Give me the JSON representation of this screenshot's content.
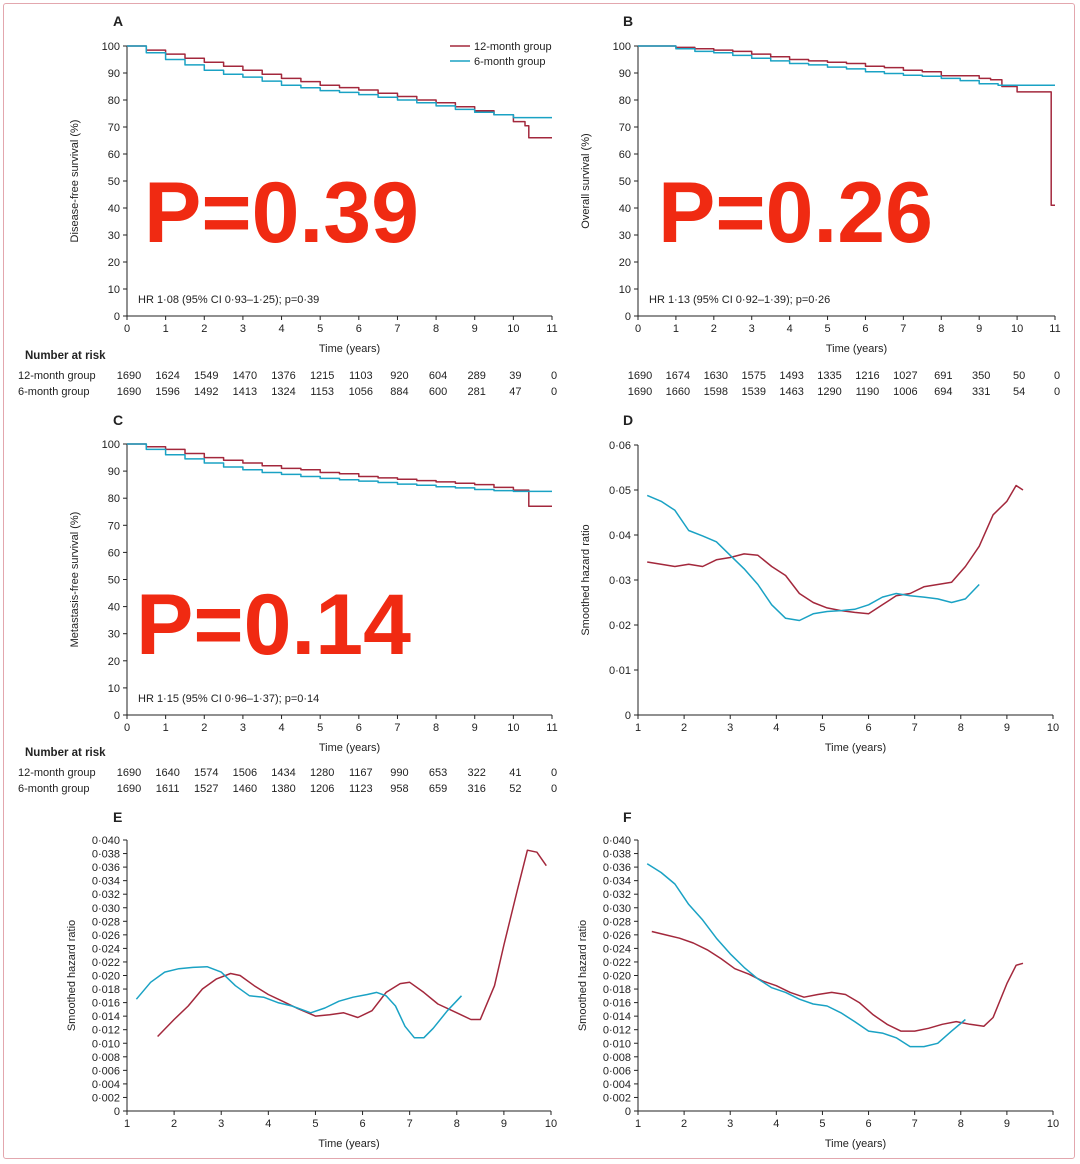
{
  "colors": {
    "twelve_month": "#a3283c",
    "six_month": "#1aa2c4",
    "pvalue": "#f02a12"
  },
  "legend": {
    "twelve": "12-month group",
    "six": "6-month group"
  },
  "risk_table": {
    "heading": "Number at risk",
    "row_labels": [
      "12-month group",
      "6-month group"
    ]
  },
  "chart_data": [
    {
      "type": "line",
      "panel": "A",
      "ylabel": "Disease-free survival (%)",
      "xlabel": "Time (years)",
      "xlim": [
        0,
        11
      ],
      "ylim": [
        0,
        100
      ],
      "xticks": [
        0,
        1,
        2,
        3,
        4,
        5,
        6,
        7,
        8,
        9,
        10,
        11
      ],
      "yticks": [
        0,
        10,
        20,
        30,
        40,
        50,
        60,
        70,
        80,
        90,
        100
      ],
      "stat_text": "HR 1·08 (95% CI 0·93–1·25); p=0·39",
      "pvalue_overlay": "P=0.39",
      "series": [
        {
          "name": "12-month group",
          "x": [
            0,
            0.5,
            1,
            1.5,
            2,
            2.5,
            3,
            3.5,
            4,
            4.5,
            5,
            5.5,
            6,
            6.5,
            7,
            7.5,
            8,
            8.5,
            9,
            9.5,
            10,
            10.3,
            10.4,
            11
          ],
          "y": [
            100,
            98.5,
            97,
            95.5,
            94,
            92.5,
            91,
            89.5,
            88,
            86.8,
            85.5,
            84.6,
            83.7,
            82.5,
            81.3,
            80,
            79,
            77.5,
            76,
            74.5,
            72,
            70.5,
            66,
            66
          ]
        },
        {
          "name": "6-month group",
          "x": [
            0,
            0.5,
            1,
            1.5,
            2,
            2.5,
            3,
            3.5,
            4,
            4.5,
            5,
            5.5,
            6,
            6.5,
            7,
            7.5,
            8,
            8.5,
            9,
            9.5,
            10,
            11
          ],
          "y": [
            100,
            97.5,
            95,
            93,
            91,
            89.5,
            88.5,
            87,
            85.5,
            84.5,
            83.5,
            82.8,
            82,
            81,
            80,
            79,
            77.8,
            76.5,
            75.5,
            74.5,
            73.5,
            73.5
          ]
        }
      ],
      "at_risk": {
        "12-month group": [
          1690,
          1624,
          1549,
          1470,
          1376,
          1215,
          1103,
          920,
          604,
          289,
          39,
          0
        ],
        "6-month group": [
          1690,
          1596,
          1492,
          1413,
          1324,
          1153,
          1056,
          884,
          600,
          281,
          47,
          0
        ]
      }
    },
    {
      "type": "line",
      "panel": "B",
      "ylabel": "Overall survival (%)",
      "xlabel": "Time (years)",
      "xlim": [
        0,
        11
      ],
      "ylim": [
        0,
        100
      ],
      "xticks": [
        0,
        1,
        2,
        3,
        4,
        5,
        6,
        7,
        8,
        9,
        10,
        11
      ],
      "yticks": [
        0,
        10,
        20,
        30,
        40,
        50,
        60,
        70,
        80,
        90,
        100
      ],
      "stat_text": "HR 1·13 (95% CI 0·92–1·39); p=0·26",
      "pvalue_overlay": "P=0.26",
      "series": [
        {
          "name": "12-month group",
          "x": [
            0,
            0.5,
            1,
            1.5,
            2,
            2.5,
            3,
            3.5,
            4,
            4.5,
            5,
            5.5,
            6,
            6.5,
            7,
            7.5,
            8,
            8.5,
            9,
            9.3,
            9.6,
            10,
            10.9,
            10.9,
            11
          ],
          "y": [
            100,
            100,
            99.5,
            99,
            98.5,
            98,
            97,
            96,
            95,
            94.5,
            94,
            93.5,
            92.5,
            92,
            91,
            90.5,
            89,
            89,
            88,
            87.5,
            85,
            83,
            83,
            41,
            41
          ]
        },
        {
          "name": "6-month group",
          "x": [
            0,
            0.5,
            1,
            1.5,
            2,
            2.5,
            3,
            3.5,
            4,
            4.5,
            5,
            5.5,
            6,
            6.5,
            7,
            7.5,
            8,
            8.5,
            9,
            9.5,
            10,
            11
          ],
          "y": [
            100,
            100,
            99,
            98,
            97.5,
            96.5,
            95.5,
            94.5,
            93.5,
            93,
            92.2,
            91.5,
            90.5,
            89.8,
            89.2,
            88.8,
            88,
            87.2,
            86,
            85.5,
            85.5,
            85.5
          ]
        }
      ],
      "at_risk": {
        "12-month group": [
          1690,
          1674,
          1630,
          1575,
          1493,
          1335,
          1216,
          1027,
          691,
          350,
          50,
          0
        ],
        "6-month group": [
          1690,
          1660,
          1598,
          1539,
          1463,
          1290,
          1190,
          1006,
          694,
          331,
          54,
          0
        ]
      }
    },
    {
      "type": "line",
      "panel": "C",
      "ylabel": "Metastasis-free survival (%)",
      "xlabel": "Time (years)",
      "xlim": [
        0,
        11
      ],
      "ylim": [
        0,
        100
      ],
      "xticks": [
        0,
        1,
        2,
        3,
        4,
        5,
        6,
        7,
        8,
        9,
        10,
        11
      ],
      "yticks": [
        0,
        10,
        20,
        30,
        40,
        50,
        60,
        70,
        80,
        90,
        100
      ],
      "stat_text": "HR 1·15 (95% CI 0·96–1·37); p=0·14",
      "pvalue_overlay": "P=0.14",
      "series": [
        {
          "name": "12-month group",
          "x": [
            0,
            0.5,
            1,
            1.5,
            2,
            2.5,
            3,
            3.5,
            4,
            4.5,
            5,
            5.5,
            6,
            6.5,
            7,
            7.5,
            8,
            8.5,
            9,
            9.5,
            10,
            10.3,
            10.4,
            11
          ],
          "y": [
            100,
            99,
            98,
            96.5,
            95,
            94,
            93,
            92,
            91,
            90.5,
            89.5,
            89,
            88,
            87.5,
            87,
            86.5,
            86,
            85.5,
            85,
            84,
            83,
            83,
            77,
            77
          ]
        },
        {
          "name": "6-month group",
          "x": [
            0,
            0.5,
            1,
            1.5,
            2,
            2.5,
            3,
            3.5,
            4,
            4.5,
            5,
            5.5,
            6,
            6.5,
            7,
            7.5,
            8,
            8.5,
            9,
            9.5,
            10,
            11
          ],
          "y": [
            100,
            98,
            96,
            94.5,
            93,
            91.5,
            90.5,
            89.5,
            88.8,
            88,
            87.3,
            86.8,
            86.3,
            85.8,
            85.2,
            84.8,
            84.2,
            83.8,
            83.2,
            82.8,
            82.5,
            82.5
          ]
        }
      ],
      "at_risk": {
        "12-month group": [
          1690,
          1640,
          1574,
          1506,
          1434,
          1280,
          1167,
          990,
          653,
          322,
          41,
          0
        ],
        "6-month group": [
          1690,
          1611,
          1527,
          1460,
          1380,
          1206,
          1123,
          958,
          659,
          316,
          52,
          0
        ]
      }
    },
    {
      "type": "line",
      "panel": "D",
      "ylabel": "Smoothed hazard ratio",
      "xlabel": "Time (years)",
      "xlim": [
        1,
        10
      ],
      "ylim": [
        0,
        0.06
      ],
      "xticks": [
        1,
        2,
        3,
        4,
        5,
        6,
        7,
        8,
        9,
        10
      ],
      "yticks": [
        0,
        0.01,
        0.02,
        0.03,
        0.04,
        0.05,
        0.06
      ],
      "ytick_labels": [
        "0",
        "0·01",
        "0·02",
        "0·03",
        "0·04",
        "0·05",
        "0·06"
      ],
      "series": [
        {
          "name": "12-month group",
          "x": [
            1.2,
            1.5,
            1.8,
            2.1,
            2.4,
            2.7,
            3,
            3.3,
            3.6,
            3.9,
            4.2,
            4.5,
            4.8,
            5.1,
            5.4,
            5.7,
            6,
            6.3,
            6.6,
            6.9,
            7.2,
            7.5,
            7.8,
            8.1,
            8.4,
            8.7,
            9,
            9.2,
            9.35
          ],
          "y": [
            0.034,
            0.0335,
            0.033,
            0.0335,
            0.033,
            0.0345,
            0.035,
            0.0358,
            0.0355,
            0.033,
            0.031,
            0.027,
            0.025,
            0.0238,
            0.0232,
            0.0228,
            0.0225,
            0.0245,
            0.0265,
            0.027,
            0.0285,
            0.029,
            0.0295,
            0.033,
            0.0375,
            0.0445,
            0.0475,
            0.051,
            0.05
          ]
        },
        {
          "name": "6-month group",
          "x": [
            1.2,
            1.5,
            1.8,
            2.1,
            2.4,
            2.7,
            3,
            3.3,
            3.6,
            3.9,
            4.2,
            4.5,
            4.8,
            5.1,
            5.4,
            5.7,
            6,
            6.3,
            6.6,
            6.9,
            7.2,
            7.5,
            7.8,
            8.1,
            8.4
          ],
          "y": [
            0.0488,
            0.0475,
            0.0455,
            0.041,
            0.0398,
            0.0385,
            0.0355,
            0.0325,
            0.029,
            0.0245,
            0.0215,
            0.021,
            0.0225,
            0.023,
            0.0232,
            0.0235,
            0.0245,
            0.0262,
            0.027,
            0.0265,
            0.0262,
            0.0258,
            0.025,
            0.0258,
            0.029
          ]
        }
      ]
    },
    {
      "type": "line",
      "panel": "E",
      "ylabel": "Smoothed hazard ratio",
      "xlabel": "Time (years)",
      "xlim": [
        1,
        10
      ],
      "ylim": [
        0,
        0.04
      ],
      "xticks": [
        1,
        2,
        3,
        4,
        5,
        6,
        7,
        8,
        9,
        10
      ],
      "yticks": [
        0,
        0.002,
        0.004,
        0.006,
        0.008,
        0.01,
        0.012,
        0.014,
        0.016,
        0.018,
        0.02,
        0.022,
        0.024,
        0.026,
        0.028,
        0.03,
        0.032,
        0.034,
        0.036,
        0.038,
        0.04
      ],
      "ytick_labels": [
        "0",
        "0·002",
        "0·004",
        "0·006",
        "0·008",
        "0·010",
        "0·012",
        "0·014",
        "0·016",
        "0·018",
        "0·020",
        "0·022",
        "0·024",
        "0·026",
        "0·028",
        "0·030",
        "0·032",
        "0·034",
        "0·036",
        "0·038",
        "0·040"
      ],
      "series": [
        {
          "name": "12-month group",
          "x": [
            1.65,
            2,
            2.3,
            2.6,
            2.9,
            3.2,
            3.4,
            3.7,
            4,
            4.3,
            4.6,
            5,
            5.3,
            5.6,
            5.9,
            6.2,
            6.5,
            6.8,
            7,
            7.3,
            7.6,
            8,
            8.3,
            8.5,
            8.8,
            9,
            9.3,
            9.5,
            9.7,
            9.9
          ],
          "y": [
            0.011,
            0.0135,
            0.0155,
            0.018,
            0.0195,
            0.0203,
            0.02,
            0.0185,
            0.0172,
            0.0162,
            0.0152,
            0.014,
            0.0142,
            0.0145,
            0.0138,
            0.0148,
            0.0175,
            0.0188,
            0.019,
            0.0175,
            0.0158,
            0.0145,
            0.0135,
            0.0135,
            0.0185,
            0.0245,
            0.033,
            0.0385,
            0.0382,
            0.0362
          ]
        },
        {
          "name": "6-month group",
          "x": [
            1.2,
            1.5,
            1.8,
            2.1,
            2.4,
            2.7,
            3,
            3.3,
            3.6,
            3.9,
            4.2,
            4.5,
            4.9,
            5.2,
            5.5,
            5.8,
            6.1,
            6.3,
            6.5,
            6.7,
            6.9,
            7.1,
            7.3,
            7.5,
            7.8,
            8.1
          ],
          "y": [
            0.0165,
            0.019,
            0.0205,
            0.021,
            0.0212,
            0.0213,
            0.0205,
            0.0185,
            0.017,
            0.0168,
            0.016,
            0.0155,
            0.0145,
            0.0152,
            0.0162,
            0.0168,
            0.0172,
            0.0175,
            0.017,
            0.0155,
            0.0125,
            0.0108,
            0.0108,
            0.0122,
            0.0148,
            0.017
          ]
        }
      ]
    },
    {
      "type": "line",
      "panel": "F",
      "ylabel": "Smoothed hazard ratio",
      "xlabel": "Time (years)",
      "xlim": [
        1,
        10
      ],
      "ylim": [
        0,
        0.04
      ],
      "xticks": [
        1,
        2,
        3,
        4,
        5,
        6,
        7,
        8,
        9,
        10
      ],
      "yticks": [
        0,
        0.002,
        0.004,
        0.006,
        0.008,
        0.01,
        0.012,
        0.014,
        0.016,
        0.018,
        0.02,
        0.022,
        0.024,
        0.026,
        0.028,
        0.03,
        0.032,
        0.034,
        0.036,
        0.038,
        0.04
      ],
      "ytick_labels": [
        "0",
        "0·002",
        "0·004",
        "0·006",
        "0·008",
        "0·010",
        "0·012",
        "0·014",
        "0·016",
        "0·018",
        "0·020",
        "0·022",
        "0·024",
        "0·026",
        "0·028",
        "0·030",
        "0·032",
        "0·034",
        "0·036",
        "0·038",
        "0·040"
      ],
      "series": [
        {
          "name": "12-month group",
          "x": [
            1.3,
            1.6,
            1.9,
            2.2,
            2.5,
            2.8,
            3.1,
            3.4,
            3.7,
            4,
            4.3,
            4.6,
            4.9,
            5.2,
            5.5,
            5.8,
            6.1,
            6.4,
            6.7,
            7,
            7.3,
            7.6,
            7.9,
            8.2,
            8.5,
            8.7,
            9,
            9.2,
            9.35
          ],
          "y": [
            0.0265,
            0.026,
            0.0255,
            0.0248,
            0.0238,
            0.0225,
            0.021,
            0.0202,
            0.0192,
            0.0185,
            0.0175,
            0.0168,
            0.0172,
            0.0175,
            0.0172,
            0.016,
            0.0142,
            0.0128,
            0.0118,
            0.0118,
            0.0122,
            0.0128,
            0.0132,
            0.0128,
            0.0125,
            0.0138,
            0.0188,
            0.0215,
            0.0218
          ]
        },
        {
          "name": "6-month group",
          "x": [
            1.2,
            1.5,
            1.8,
            2.1,
            2.4,
            2.7,
            3,
            3.3,
            3.6,
            3.9,
            4.2,
            4.5,
            4.8,
            5.1,
            5.4,
            5.7,
            6,
            6.3,
            6.6,
            6.9,
            7.2,
            7.5,
            7.8,
            8.1
          ],
          "y": [
            0.0365,
            0.0352,
            0.0335,
            0.0305,
            0.0282,
            0.0255,
            0.0232,
            0.0212,
            0.0195,
            0.0182,
            0.0175,
            0.0165,
            0.0158,
            0.0155,
            0.0145,
            0.0132,
            0.0118,
            0.0115,
            0.0108,
            0.0095,
            0.0095,
            0.01,
            0.0118,
            0.0135
          ]
        }
      ]
    }
  ]
}
